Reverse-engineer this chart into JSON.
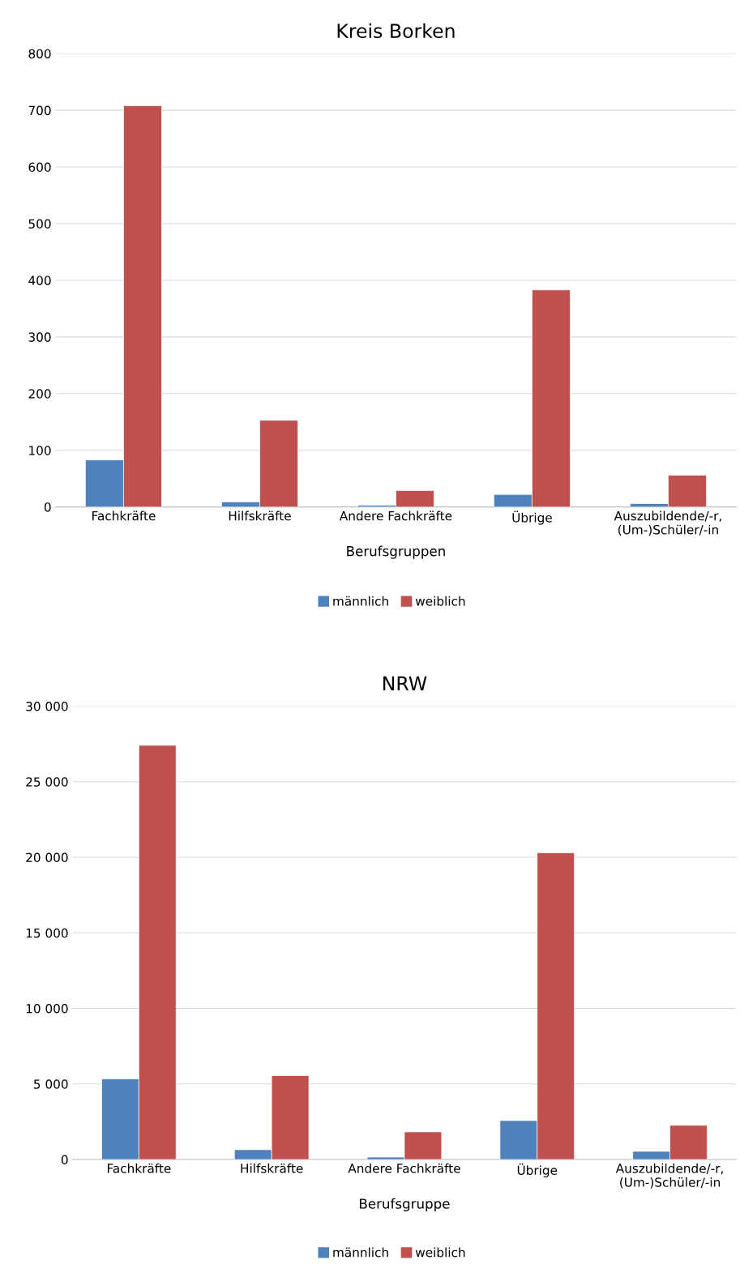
{
  "chart_data": [
    {
      "type": "bar",
      "title": "Kreis Borken",
      "xlabel": "Berufsgruppen",
      "categories": [
        "Fachkräfte",
        "Hilfskräfte",
        "Andere Fachkräfte",
        "Übrige",
        "Auszubildende/-r,\n(Um-)Schüler/-in"
      ],
      "series": [
        {
          "name": "männlich",
          "color": "#4f81bd",
          "values": [
            83,
            9,
            3,
            22,
            6
          ]
        },
        {
          "name": "weiblich",
          "color": "#c0504d",
          "values": [
            708,
            153,
            29,
            383,
            56
          ]
        }
      ],
      "ylim": [
        0,
        800
      ],
      "yticks": [
        0,
        100,
        200,
        300,
        400,
        500,
        600,
        700,
        800
      ],
      "grid": "y",
      "legend": "bottom"
    },
    {
      "type": "bar",
      "title": "NRW",
      "xlabel": "Berufsgruppe",
      "categories": [
        "Fachkräfte",
        "Hilfskräfte",
        "Andere Fachkräfte",
        "Übrige",
        "Auszubildende/-r,\n(Um-)Schüler/-in"
      ],
      "series": [
        {
          "name": "männlich",
          "color": "#4f81bd",
          "values": [
            5330,
            650,
            160,
            2580,
            540
          ]
        },
        {
          "name": "weiblich",
          "color": "#c0504d",
          "values": [
            27410,
            5550,
            1830,
            20300,
            2260
          ]
        }
      ],
      "ylim": [
        0,
        30000
      ],
      "yticks": [
        0,
        {
          "value": 5000,
          "label": "5 000"
        },
        {
          "value": 10000,
          "label": "10 000"
        },
        {
          "value": 15000,
          "label": "15 000"
        },
        {
          "value": 20000,
          "label": "20 000"
        },
        {
          "value": 25000,
          "label": "25 000"
        },
        {
          "value": 30000,
          "label": "30 000"
        }
      ],
      "grid": "y",
      "legend": "bottom"
    }
  ]
}
